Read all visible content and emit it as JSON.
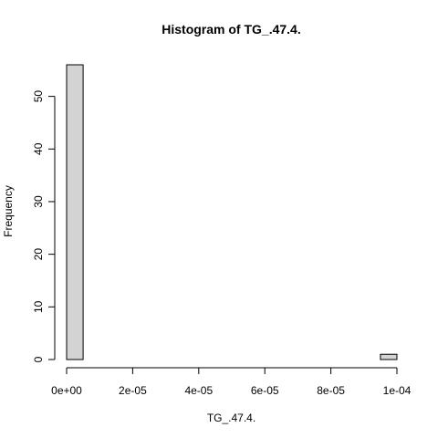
{
  "chart_data": {
    "type": "bar",
    "title": "Histogram of TG_.47.4.",
    "xlabel": "TG_.47.4.",
    "ylabel": "Frequency",
    "bin_width": 5e-06,
    "bins": [
      {
        "start": 0.0,
        "end": 5e-06,
        "count": 56
      },
      {
        "start": 5e-06,
        "end": 1e-05,
        "count": 0
      },
      {
        "start": 1e-05,
        "end": 1.5e-05,
        "count": 0
      },
      {
        "start": 1.5e-05,
        "end": 2e-05,
        "count": 0
      },
      {
        "start": 2e-05,
        "end": 2.5e-05,
        "count": 0
      },
      {
        "start": 2.5e-05,
        "end": 3e-05,
        "count": 0
      },
      {
        "start": 3e-05,
        "end": 3.5e-05,
        "count": 0
      },
      {
        "start": 3.5e-05,
        "end": 4e-05,
        "count": 0
      },
      {
        "start": 4e-05,
        "end": 4.5e-05,
        "count": 0
      },
      {
        "start": 4.5e-05,
        "end": 5e-05,
        "count": 0
      },
      {
        "start": 5e-05,
        "end": 5.5e-05,
        "count": 0
      },
      {
        "start": 5.5e-05,
        "end": 6e-05,
        "count": 0
      },
      {
        "start": 6e-05,
        "end": 6.5e-05,
        "count": 0
      },
      {
        "start": 6.5e-05,
        "end": 7e-05,
        "count": 0
      },
      {
        "start": 7e-05,
        "end": 7.5e-05,
        "count": 0
      },
      {
        "start": 7.5e-05,
        "end": 8e-05,
        "count": 0
      },
      {
        "start": 8e-05,
        "end": 8.5e-05,
        "count": 0
      },
      {
        "start": 8.5e-05,
        "end": 9e-05,
        "count": 0
      },
      {
        "start": 9e-05,
        "end": 9.5e-05,
        "count": 0
      },
      {
        "start": 9.5e-05,
        "end": 0.0001,
        "count": 1
      }
    ],
    "xlim": [
      0,
      0.0001
    ],
    "ylim": [
      0,
      56
    ],
    "x_ticks": [
      {
        "value": 0.0,
        "label": "0e+00"
      },
      {
        "value": 2e-05,
        "label": "2e-05"
      },
      {
        "value": 4e-05,
        "label": "4e-05"
      },
      {
        "value": 6e-05,
        "label": "6e-05"
      },
      {
        "value": 8e-05,
        "label": "8e-05"
      },
      {
        "value": 0.0001,
        "label": "1e-04"
      }
    ],
    "y_ticks": [
      {
        "value": 0,
        "label": "0"
      },
      {
        "value": 10,
        "label": "10"
      },
      {
        "value": 20,
        "label": "20"
      },
      {
        "value": 30,
        "label": "30"
      },
      {
        "value": 40,
        "label": "40"
      },
      {
        "value": 50,
        "label": "50"
      }
    ],
    "bar_fill": "#d3d3d3",
    "bar_stroke": "#000000",
    "grid": false,
    "legend": "none"
  }
}
